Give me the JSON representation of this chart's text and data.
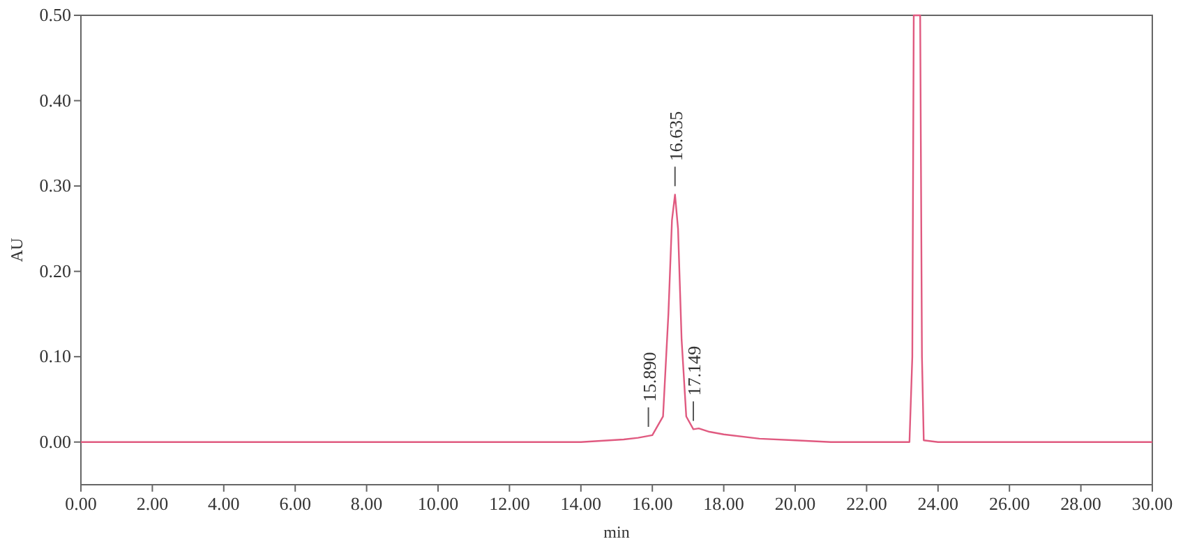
{
  "chart_data": {
    "type": "line",
    "xlabel": "min",
    "ylabel": "AU",
    "xlim": [
      0,
      30
    ],
    "ylim": [
      -0.05,
      0.5
    ],
    "xticks": [
      {
        "value": 0,
        "label": "0.00"
      },
      {
        "value": 2,
        "label": "2.00"
      },
      {
        "value": 4,
        "label": "4.00"
      },
      {
        "value": 6,
        "label": "6.00"
      },
      {
        "value": 8,
        "label": "8.00"
      },
      {
        "value": 10,
        "label": "10.00"
      },
      {
        "value": 12,
        "label": "12.00"
      },
      {
        "value": 14,
        "label": "14.00"
      },
      {
        "value": 16,
        "label": "16.00"
      },
      {
        "value": 18,
        "label": "18.00"
      },
      {
        "value": 20,
        "label": "20.00"
      },
      {
        "value": 22,
        "label": "22.00"
      },
      {
        "value": 24,
        "label": "24.00"
      },
      {
        "value": 26,
        "label": "26.00"
      },
      {
        "value": 28,
        "label": "28.00"
      },
      {
        "value": 30,
        "label": "30.00"
      }
    ],
    "yticks": [
      {
        "value": 0,
        "label": "0.00"
      },
      {
        "value": 0.1,
        "label": "0.10"
      },
      {
        "value": 0.2,
        "label": "0.20"
      },
      {
        "value": 0.3,
        "label": "0.30"
      },
      {
        "value": 0.4,
        "label": "0.40"
      },
      {
        "value": 0.5,
        "label": "0.50"
      }
    ],
    "grid": false,
    "line_style": "solid",
    "series": [
      {
        "color": "#e05a80",
        "x": [
          0,
          2,
          4,
          6,
          8,
          10,
          12,
          14,
          15.2,
          15.6,
          16.0,
          16.3,
          16.45,
          16.55,
          16.635,
          16.72,
          16.82,
          16.95,
          17.149,
          17.3,
          17.6,
          18,
          19,
          20,
          21,
          23.2,
          23.28,
          23.32,
          23.5,
          23.55,
          23.6,
          24,
          26,
          28,
          30
        ],
        "values": [
          0,
          0,
          0,
          0,
          0,
          0,
          0,
          0,
          0.003,
          0.005,
          0.008,
          0.03,
          0.15,
          0.26,
          0.29,
          0.25,
          0.12,
          0.03,
          0.015,
          0.016,
          0.012,
          0.009,
          0.004,
          0.002,
          0,
          0,
          0.1,
          0.5,
          0.5,
          0.1,
          0.002,
          0,
          0,
          0,
          0
        ]
      }
    ],
    "annotations": [
      {
        "text": "15.890",
        "x": 15.89,
        "y": 0.008
      },
      {
        "text": "16.635",
        "x": 16.635,
        "y": 0.29
      },
      {
        "text": "17.149",
        "x": 17.149,
        "y": 0.015
      }
    ]
  }
}
